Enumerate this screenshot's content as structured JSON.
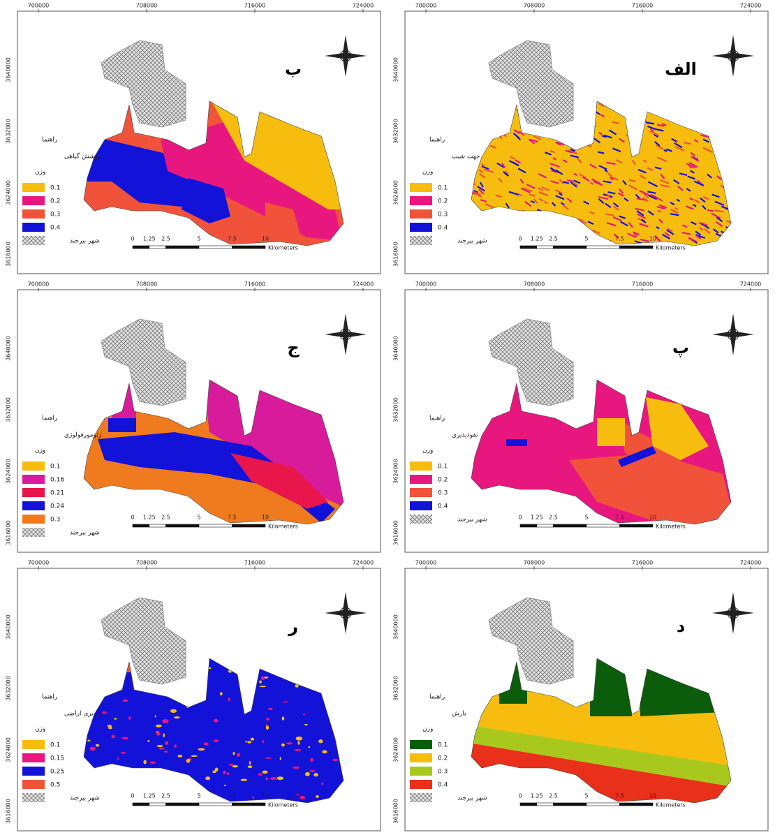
{
  "panels": [
    {
      "letter": "ب",
      "x_ticks": [
        "700000",
        "708000",
        "716000",
        "724000"
      ],
      "y_ticks": [
        "3640000",
        "3632000",
        "3624000",
        "3616000"
      ],
      "legend": {
        "heading": "راهنما",
        "title": "پوشش گیاهی",
        "weight": "وزن",
        "classes": [
          {
            "label": 0.1,
            "color": "#f7bd0e"
          },
          {
            "label": 0.2,
            "color": "#e8177f"
          },
          {
            "label": 0.3,
            "color": "#f0533a"
          },
          {
            "label": 0.4,
            "color": "#1212d8"
          }
        ],
        "city": "شهر بیرجند"
      },
      "scale": {
        "ticks": [
          0,
          1.25,
          2.5,
          5,
          7.5,
          10
        ],
        "unit": "Kilometers"
      }
    },
    {
      "letter": "الف",
      "x_ticks": [
        "700000",
        "708000",
        "716000",
        "724000"
      ],
      "y_ticks": [
        "3640000",
        "3632000",
        "3624000",
        "3616000"
      ],
      "legend": {
        "heading": "راهنما",
        "title": "جهت شیب",
        "weight": "وزن",
        "classes": [
          {
            "label": 0.1,
            "color": "#f7bd0e"
          },
          {
            "label": 0.2,
            "color": "#e8177f"
          },
          {
            "label": 0.3,
            "color": "#f0533a"
          },
          {
            "label": 0.4,
            "color": "#1212d8"
          }
        ],
        "city": "شهر بیرجند"
      },
      "scale": {
        "ticks": [
          0,
          1.25,
          2.5,
          5,
          7.5,
          10
        ],
        "unit": "Kilometers"
      }
    },
    {
      "letter": "ج",
      "x_ticks": [
        "700000",
        "708000",
        "716000",
        "724000"
      ],
      "y_ticks": [
        "3640000",
        "3632000",
        "3624000",
        "3616000"
      ],
      "legend": {
        "heading": "راهنما",
        "title": "ژئومورفولوژی",
        "weight": "وزن",
        "classes": [
          {
            "label": 0.1,
            "color": "#f7bd0e"
          },
          {
            "label": 0.16,
            "color": "#d81b9a"
          },
          {
            "label": 0.21,
            "color": "#e8164a"
          },
          {
            "label": 0.24,
            "color": "#1212d8"
          },
          {
            "label": 0.3,
            "color": "#f07a1e"
          }
        ],
        "city": "شهر بیرجند"
      },
      "scale": {
        "ticks": [
          0,
          1.25,
          2.5,
          5,
          7.5,
          10
        ],
        "unit": "Kilometers"
      }
    },
    {
      "letter": "پ",
      "x_ticks": [
        "700000",
        "708000",
        "716000",
        "724000"
      ],
      "y_ticks": [
        "3640000",
        "3632000",
        "3624000",
        "3616000"
      ],
      "legend": {
        "heading": "راهنما",
        "title": "نفوذپذیری",
        "weight": "وزن",
        "classes": [
          {
            "label": 0.1,
            "color": "#f7bd0e"
          },
          {
            "label": 0.2,
            "color": "#e8177f"
          },
          {
            "label": 0.3,
            "color": "#f0533a"
          },
          {
            "label": 0.4,
            "color": "#1212d8"
          }
        ],
        "city": "شهر بیرجند"
      },
      "scale": {
        "ticks": [
          0,
          1.25,
          2.5,
          5,
          7.5,
          10
        ],
        "unit": "Kilometers"
      }
    },
    {
      "letter": "ر",
      "x_ticks": [
        "700000",
        "708000",
        "716000",
        "724000"
      ],
      "y_ticks": [
        "3640000",
        "3632000",
        "3624000",
        "3616000"
      ],
      "legend": {
        "heading": "راهنما",
        "title": "کاربری اراضی",
        "weight": "وزن",
        "classes": [
          {
            "label": 0.1,
            "color": "#f7bd0e"
          },
          {
            "label": 0.15,
            "color": "#e8177f"
          },
          {
            "label": 0.25,
            "color": "#1212d8"
          },
          {
            "label": 0.5,
            "color": "#f0533a"
          }
        ],
        "city": "شهر بیرجند"
      },
      "scale": {
        "ticks": [
          0,
          1.25,
          2.5,
          5,
          7.5,
          10
        ],
        "unit": "Kilometers"
      }
    },
    {
      "letter": "د",
      "x_ticks": [
        "700000",
        "708000",
        "716000",
        "724000"
      ],
      "y_ticks": [
        "3640000",
        "3632000",
        "3624000",
        "3616000"
      ],
      "legend": {
        "heading": "راهنما",
        "title": "بارش",
        "weight": "وزن",
        "classes": [
          {
            "label": 0.1,
            "color": "#0b5c0b"
          },
          {
            "label": 0.2,
            "color": "#f7bd0e"
          },
          {
            "label": 0.3,
            "color": "#a8c81e"
          },
          {
            "label": 0.4,
            "color": "#e8301a"
          }
        ],
        "city": "شهر بیرجند"
      },
      "scale": {
        "ticks": [
          0,
          1.25,
          2.5,
          5,
          7.5,
          10
        ],
        "unit": "Kilometers"
      }
    }
  ]
}
